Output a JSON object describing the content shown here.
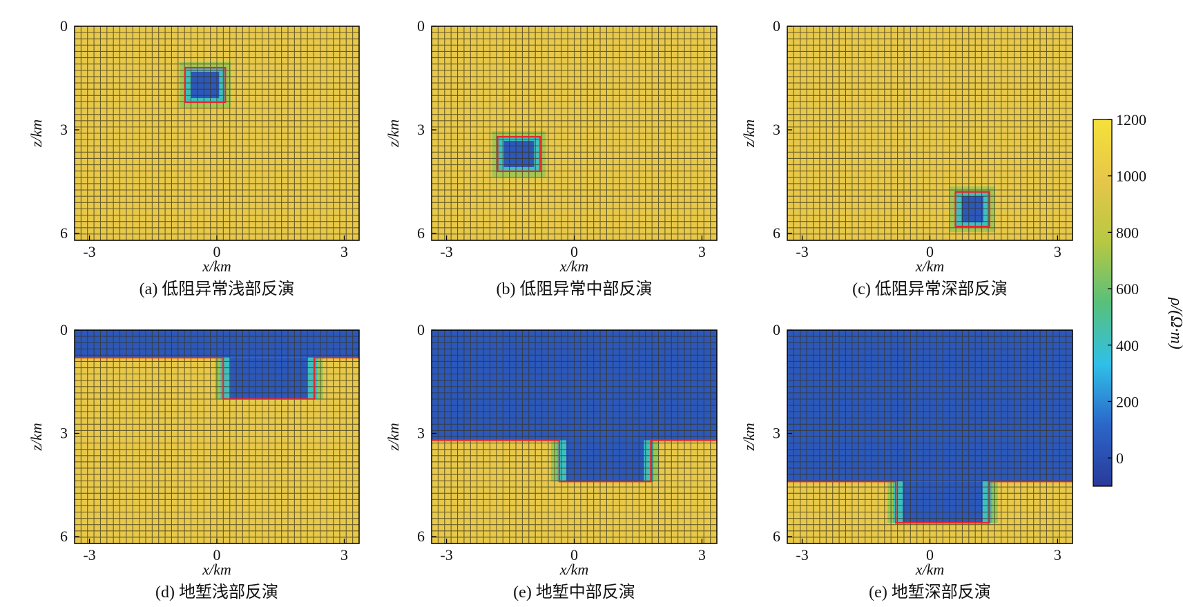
{
  "chart_data": [
    {
      "type": "heatmap",
      "caption": "(a) 低阻异常浅部反演",
      "xlabel": "x/km",
      "ylabel": "z/km",
      "x_ticks": [
        "-3",
        "0",
        "3"
      ],
      "y_ticks": [
        "0",
        "3",
        "6"
      ],
      "xlim": [
        -3.35,
        3.35
      ],
      "ylim": [
        0,
        6.2
      ],
      "background_resistivity": 1000,
      "anomaly_resistivity": 50,
      "true_model": {
        "kind": "block",
        "x": [
          -0.75,
          0.2
        ],
        "z": [
          1.2,
          2.2
        ]
      }
    },
    {
      "type": "heatmap",
      "caption": "(b) 低阻异常中部反演",
      "xlabel": "x/km",
      "ylabel": "z/km",
      "x_ticks": [
        "-3",
        "0",
        "3"
      ],
      "y_ticks": [
        "0",
        "3",
        "6"
      ],
      "xlim": [
        -3.35,
        3.35
      ],
      "ylim": [
        0,
        6.2
      ],
      "background_resistivity": 1000,
      "anomaly_resistivity": 50,
      "true_model": {
        "kind": "block",
        "x": [
          -1.8,
          -0.8
        ],
        "z": [
          3.2,
          4.2
        ]
      }
    },
    {
      "type": "heatmap",
      "caption": "(c) 低阻异常深部反演",
      "xlabel": "x/km",
      "ylabel": "z/km",
      "x_ticks": [
        "-3",
        "0",
        "3"
      ],
      "y_ticks": [
        "0",
        "3",
        "6"
      ],
      "xlim": [
        -3.35,
        3.35
      ],
      "ylim": [
        0,
        6.2
      ],
      "background_resistivity": 1000,
      "anomaly_resistivity": 50,
      "true_model": {
        "kind": "block",
        "x": [
          0.6,
          1.4
        ],
        "z": [
          4.8,
          5.8
        ]
      }
    },
    {
      "type": "heatmap",
      "caption": "(d) 地堑浅部反演",
      "xlabel": "x/km",
      "ylabel": "z/km",
      "x_ticks": [
        "-3",
        "0",
        "3"
      ],
      "y_ticks": [
        "0",
        "3",
        "6"
      ],
      "xlim": [
        -3.35,
        3.35
      ],
      "ylim": [
        0,
        6.2
      ],
      "background_resistivity": 1000,
      "anomaly_resistivity": 50,
      "true_model": {
        "kind": "graben",
        "top": 0.8,
        "bottom": 2.0,
        "x": [
          0.15,
          2.3
        ]
      }
    },
    {
      "type": "heatmap",
      "caption": "(e) 地堑中部反演",
      "xlabel": "x/km",
      "ylabel": "z/km",
      "x_ticks": [
        "-3",
        "0",
        "3"
      ],
      "y_ticks": [
        "0",
        "3",
        "6"
      ],
      "xlim": [
        -3.35,
        3.35
      ],
      "ylim": [
        0,
        6.2
      ],
      "background_resistivity": 1000,
      "anomaly_resistivity": 50,
      "true_model": {
        "kind": "graben",
        "top": 3.2,
        "bottom": 4.4,
        "x": [
          -0.35,
          1.8
        ]
      }
    },
    {
      "type": "heatmap",
      "caption": "(e) 地堑深部反演",
      "xlabel": "x/km",
      "ylabel": "z/km",
      "x_ticks": [
        "-3",
        "0",
        "3"
      ],
      "y_ticks": [
        "0",
        "3",
        "6"
      ],
      "xlim": [
        -3.35,
        3.35
      ],
      "ylim": [
        0,
        6.2
      ],
      "background_resistivity": 1000,
      "anomaly_resistivity": 50,
      "true_model": {
        "kind": "graben",
        "top": 4.4,
        "bottom": 5.6,
        "x": [
          -0.8,
          1.4
        ]
      }
    }
  ],
  "colorbar": {
    "label": "ρ/(Ω·m)",
    "ticks": [
      "1200",
      "1000",
      "800",
      "600",
      "400",
      "200",
      "0"
    ],
    "tick_values": [
      1200,
      1000,
      800,
      600,
      400,
      200,
      0
    ],
    "range": [
      -100,
      1200
    ],
    "colors": [
      "#2a3a9a",
      "#2b66c8",
      "#30c0e8",
      "#58c07a",
      "#b7c842",
      "#e6c64a",
      "#f5e13a"
    ]
  },
  "colors": {
    "conductive": "#2e47a5",
    "resistive": "#ecc53c",
    "outline": "#e8262b",
    "grid": "#3a3320"
  }
}
